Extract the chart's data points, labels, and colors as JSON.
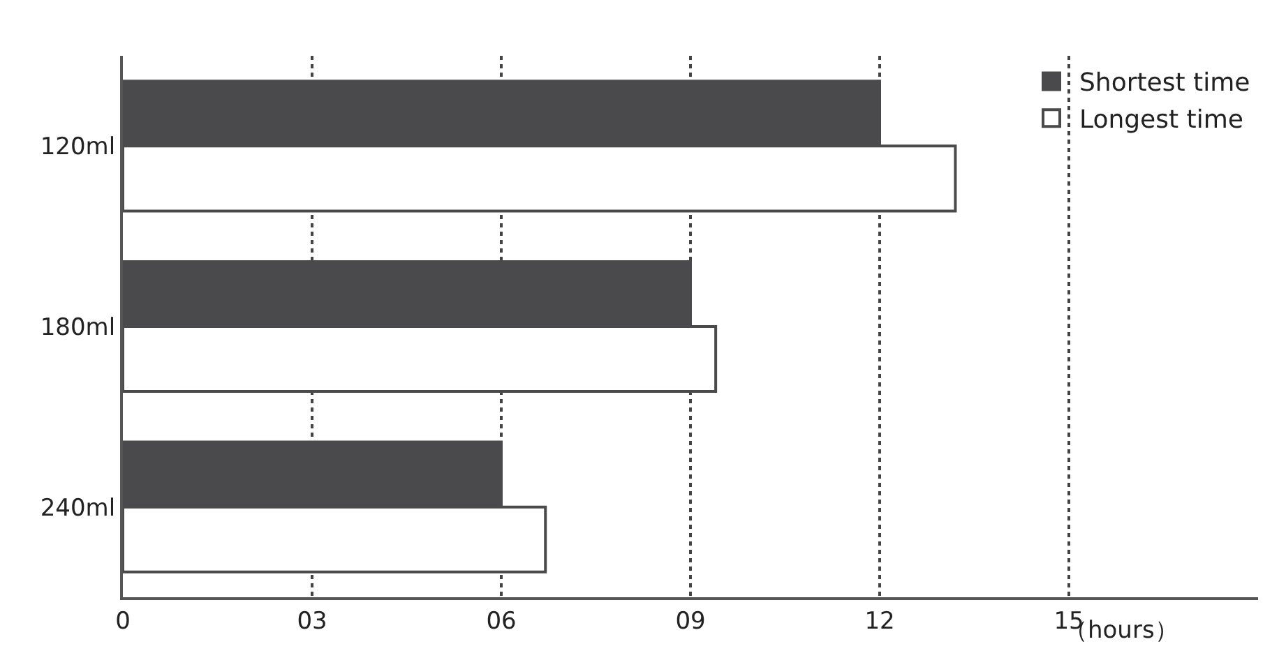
{
  "chart_data": {
    "type": "bar",
    "orientation": "horizontal",
    "xlabel": "（hours）",
    "categories": [
      "120ml",
      "180ml",
      "240ml"
    ],
    "series": [
      {
        "name": "Shortest time",
        "color": "#4a4a4c",
        "values": [
          12,
          9,
          6
        ]
      },
      {
        "name": "Longest time",
        "color": "#ffffff",
        "values": [
          13.2,
          9.4,
          6.7
        ]
      }
    ],
    "xlim": [
      0,
      18
    ],
    "xticks": [
      0,
      {
        "value": 3,
        "label": "03"
      },
      {
        "value": 6,
        "label": "06"
      },
      {
        "value": 9,
        "label": "09"
      },
      12,
      15
    ],
    "grid": "x",
    "legend": "top right"
  }
}
